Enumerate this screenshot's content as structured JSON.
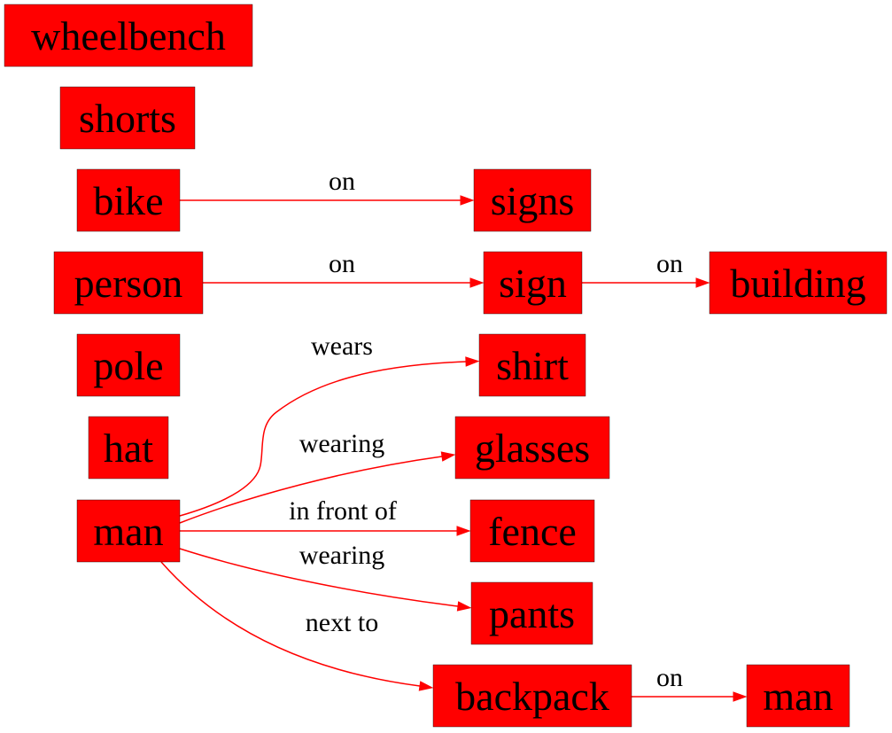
{
  "colors": {
    "node_fill": "#ff0000",
    "edge_stroke": "#ff0000",
    "text": "#000000",
    "background": "#ffffff"
  },
  "nodes": [
    {
      "id": "wheelbench",
      "label": "wheelbench"
    },
    {
      "id": "shorts",
      "label": "shorts"
    },
    {
      "id": "bike",
      "label": "bike"
    },
    {
      "id": "signs",
      "label": "signs"
    },
    {
      "id": "person",
      "label": "person"
    },
    {
      "id": "sign",
      "label": "sign"
    },
    {
      "id": "building",
      "label": "building"
    },
    {
      "id": "pole",
      "label": "pole"
    },
    {
      "id": "shirt",
      "label": "shirt"
    },
    {
      "id": "hat",
      "label": "hat"
    },
    {
      "id": "glasses",
      "label": "glasses"
    },
    {
      "id": "man",
      "label": "man"
    },
    {
      "id": "fence",
      "label": "fence"
    },
    {
      "id": "pants",
      "label": "pants"
    },
    {
      "id": "backpack",
      "label": "backpack"
    },
    {
      "id": "man2",
      "label": "man"
    }
  ],
  "edges": [
    {
      "from": "bike",
      "to": "signs",
      "label": "on"
    },
    {
      "from": "person",
      "to": "sign",
      "label": "on"
    },
    {
      "from": "sign",
      "to": "building",
      "label": "on"
    },
    {
      "from": "man",
      "to": "shirt",
      "label": "wears"
    },
    {
      "from": "man",
      "to": "glasses",
      "label": "wearing"
    },
    {
      "from": "man",
      "to": "fence",
      "label": "in front of"
    },
    {
      "from": "man",
      "to": "pants",
      "label": "wearing"
    },
    {
      "from": "man",
      "to": "backpack",
      "label": "next to"
    },
    {
      "from": "backpack",
      "to": "man2",
      "label": "on"
    }
  ]
}
